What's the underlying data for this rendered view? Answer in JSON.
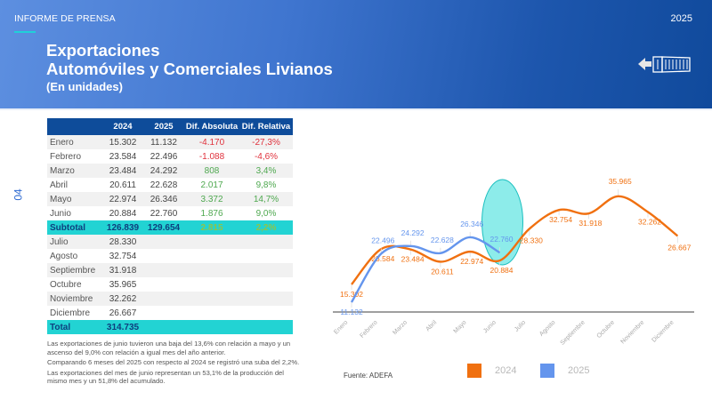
{
  "header": {
    "kicker": "INFORME DE PRENSA",
    "year": "2025",
    "title_line1": "Exportaciones",
    "title_line2": "Automóviles y Comerciales Livianos",
    "title_line3": "(En unidades)",
    "icon": "container-export-icon"
  },
  "page_number": "04",
  "table": {
    "headers": [
      "",
      "2024",
      "2025",
      "Dif. Absoluta",
      "Dif. Relativa"
    ],
    "rows": [
      {
        "month": "Enero",
        "y2024": "15.302",
        "y2025": "11.132",
        "abs": "-4.170",
        "rel": "-27,3%"
      },
      {
        "month": "Febrero",
        "y2024": "23.584",
        "y2025": "22.496",
        "abs": "-1.088",
        "rel": "-4,6%"
      },
      {
        "month": "Marzo",
        "y2024": "23.484",
        "y2025": "24.292",
        "abs": "808",
        "rel": "3,4%"
      },
      {
        "month": "Abril",
        "y2024": "20.611",
        "y2025": "22.628",
        "abs": "2.017",
        "rel": "9,8%"
      },
      {
        "month": "Mayo",
        "y2024": "22.974",
        "y2025": "26.346",
        "abs": "3.372",
        "rel": "14,7%"
      },
      {
        "month": "Junio",
        "y2024": "20.884",
        "y2025": "22.760",
        "abs": "1.876",
        "rel": "9,0%"
      }
    ],
    "subtotal": {
      "month": "Subtotal",
      "y2024": "126.839",
      "y2025": "129.654",
      "abs": "2.815",
      "rel": "2,2%"
    },
    "rows2": [
      {
        "month": "Julio",
        "y2024": "28.330"
      },
      {
        "month": "Agosto",
        "y2024": "32.754"
      },
      {
        "month": "Septiembre",
        "y2024": "31.918"
      },
      {
        "month": "Octubre",
        "y2024": "35.965"
      },
      {
        "month": "Noviembre",
        "y2024": "32.262"
      },
      {
        "month": "Diciembre",
        "y2024": "26.667"
      }
    ],
    "total": {
      "month": "Total",
      "y2024": "314.735"
    }
  },
  "notes": [
    "Las exportaciones de junio tuvieron una baja del 13,6% con relación a mayo y un ascenso del 9,0% con relación a igual mes del año anterior.",
    "Comparando 6 meses del 2025 con respecto al 2024 se registró una suba del 2,2%.",
    "Las exportaciones del mes de junio representan un 53,1% de la producción del mismo mes y un 51,8% del acumulado."
  ],
  "source": "Fuente: ADEFA",
  "colors": {
    "series_2024": "#f07010",
    "series_2025": "#6495ed",
    "header_blue": "#0e4c9a",
    "highlight_teal": "#22d3d3",
    "negative": "#e0313c",
    "positive": "#4ea84f"
  },
  "chart_data": {
    "type": "line",
    "title": "",
    "xlabel": "",
    "ylabel": "",
    "categories": [
      "Enero",
      "Febrero",
      "Marzo",
      "Abril",
      "Mayo",
      "Junio",
      "Julio",
      "Agosto",
      "Septiembre",
      "Octubre",
      "Noviembre",
      "Diciembre"
    ],
    "series": [
      {
        "name": "2024",
        "color": "#f07010",
        "values": [
          15302,
          23584,
          23484,
          20611,
          22974,
          20884,
          28330,
          32754,
          31918,
          35965,
          32262,
          26667
        ],
        "labels": [
          "15.302",
          "23.584",
          "23.484",
          "20.611",
          "22.974",
          "20.884",
          "28.330",
          "32.754",
          "31.918",
          "35.965",
          "32.262",
          "26.667"
        ]
      },
      {
        "name": "2025",
        "color": "#6495ed",
        "values": [
          11132,
          22496,
          24292,
          22628,
          26346,
          22760
        ],
        "labels": [
          "11.132",
          "22.496",
          "24.292",
          "22.628",
          "26.346",
          "22.760"
        ]
      }
    ],
    "legend": [
      "2024",
      "2025"
    ],
    "legend_position": "bottom",
    "grid": false,
    "annotation": "Teal ellipse highlighting Junio"
  }
}
